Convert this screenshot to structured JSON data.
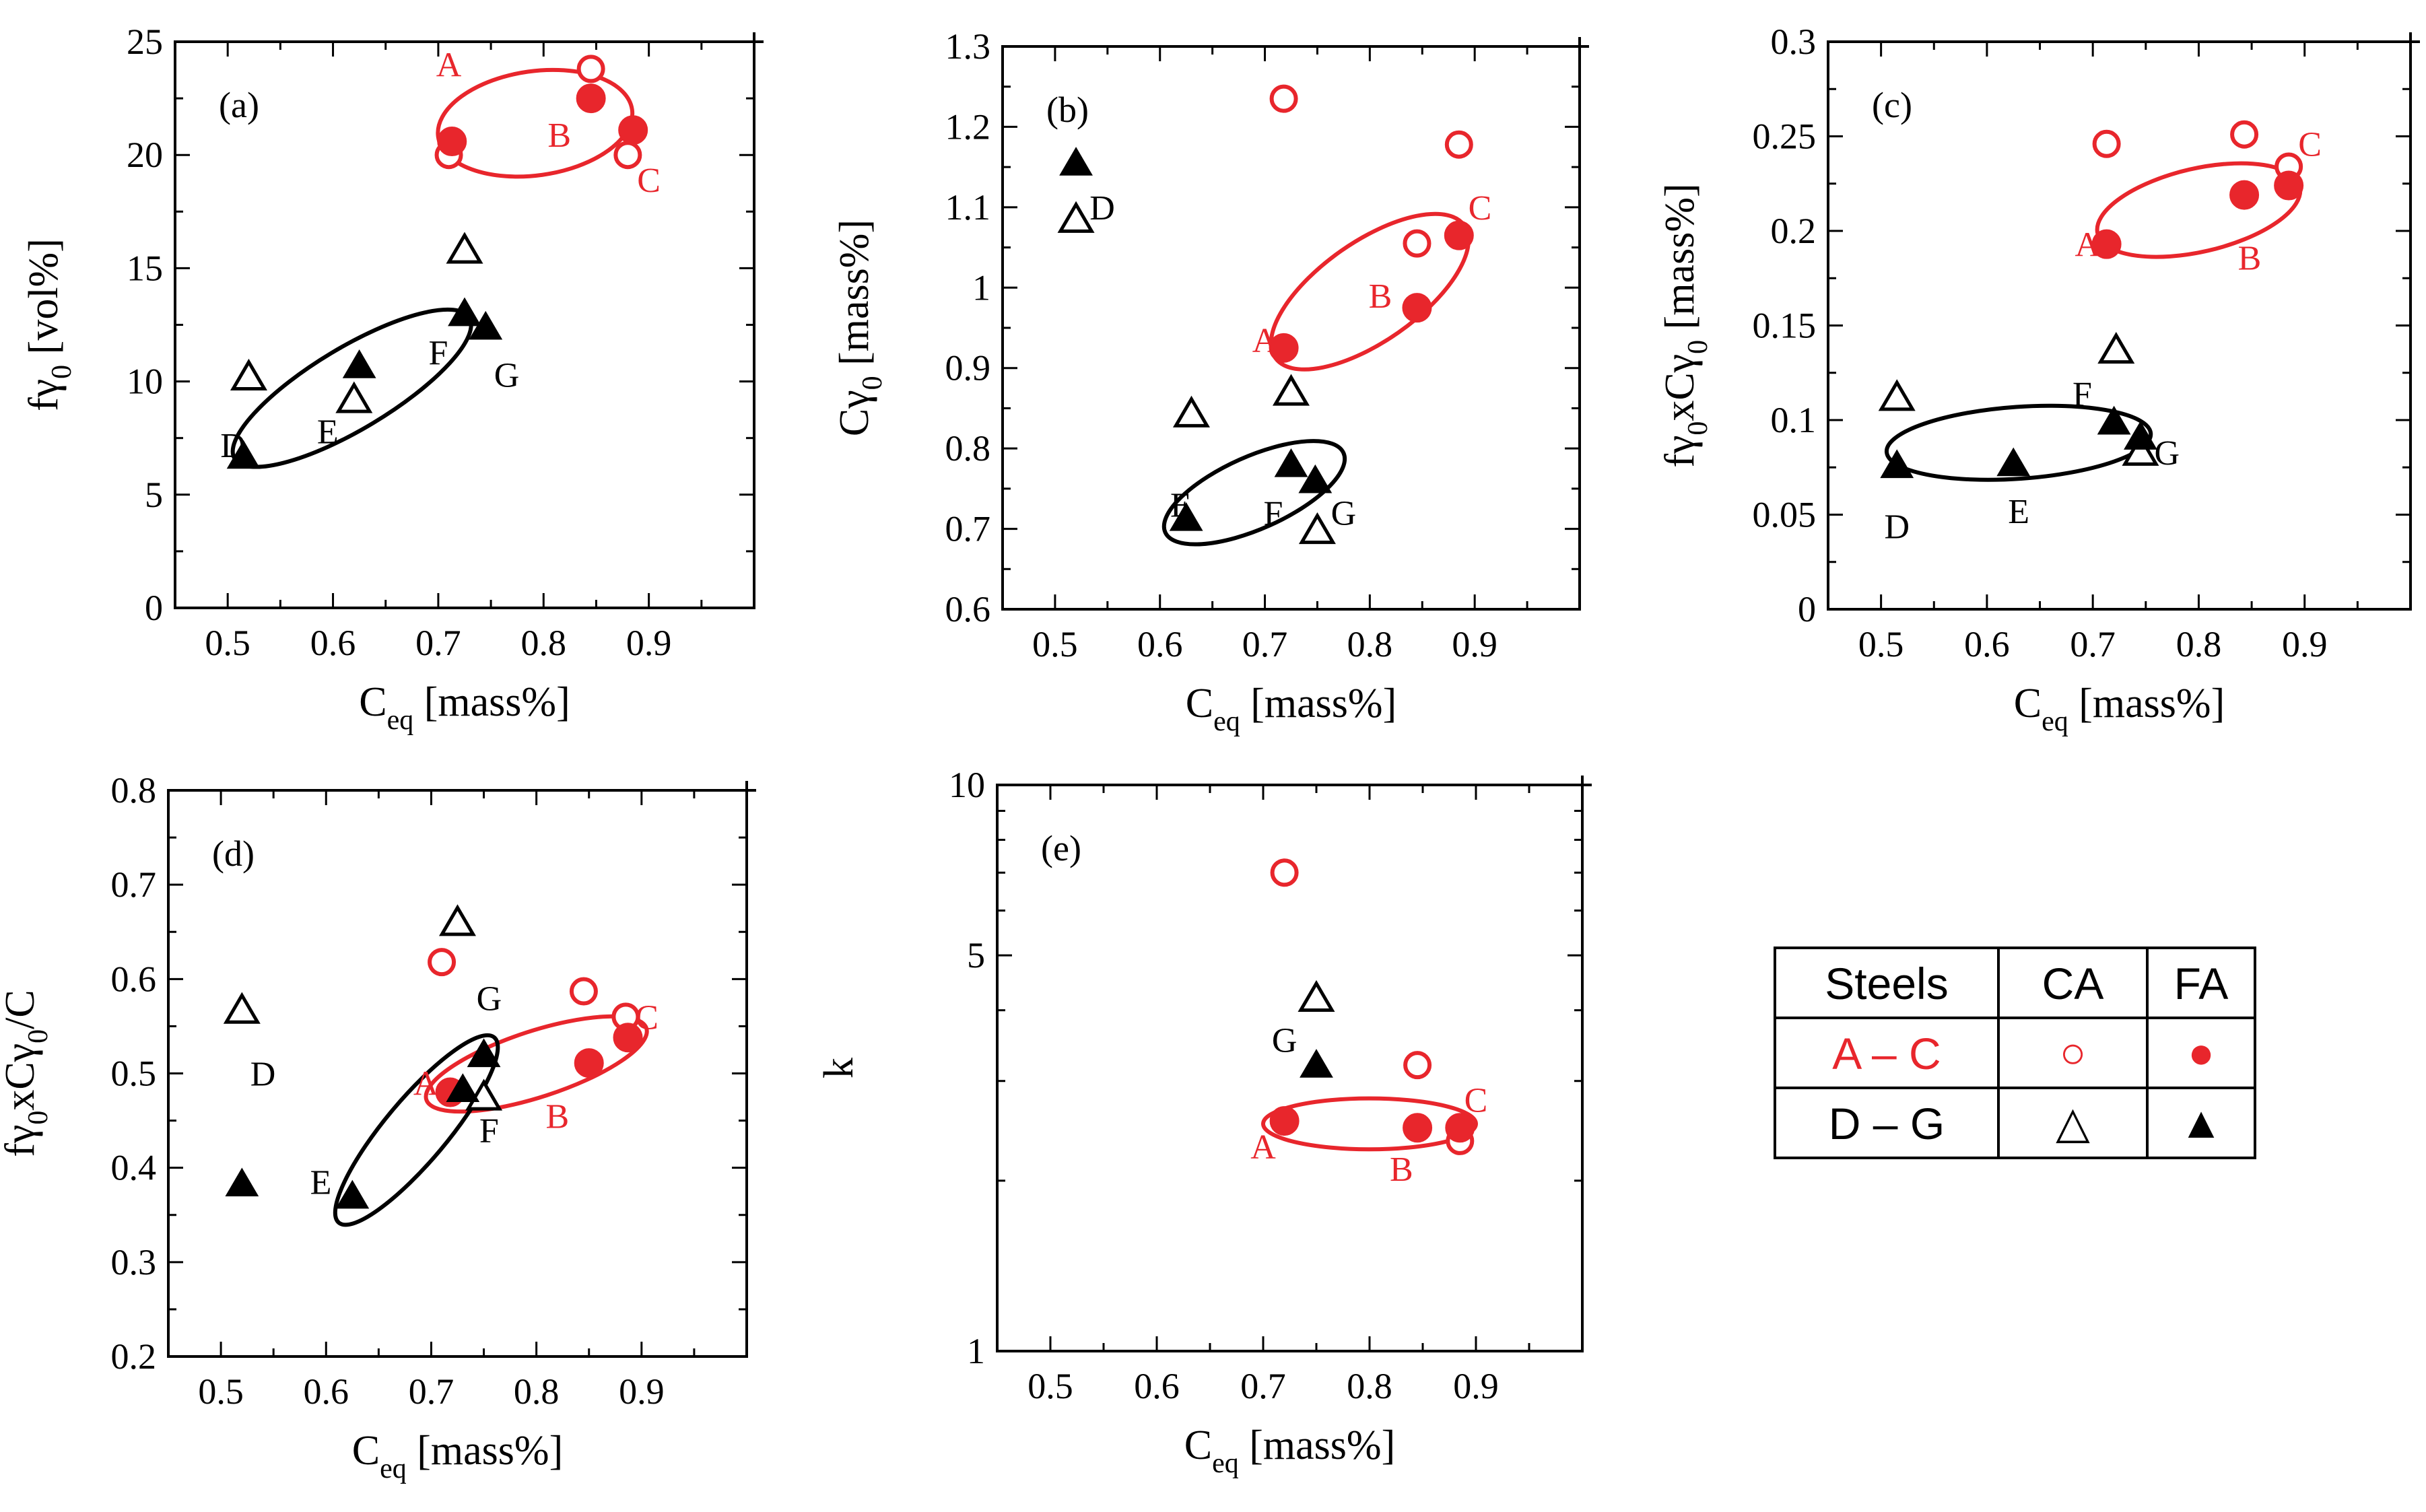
{
  "colors": {
    "red": "#e8262c",
    "black": "#000000"
  },
  "legend": {
    "headers": [
      "Steels",
      "CA",
      "FA"
    ],
    "rows": [
      {
        "steels": "A – C",
        "ca_symbol": "○",
        "fa_symbol": "●",
        "color": "#e8262c"
      },
      {
        "steels": "D – G",
        "ca_symbol": "△",
        "fa_symbol": "▲",
        "color": "#000000"
      }
    ]
  },
  "chart_data": [
    {
      "id": "a",
      "panel_label": "(a)",
      "type": "scatter",
      "ylabel_main": "fγ",
      "ylabel_sub": "0",
      "ylabel_rest": " [vol%]",
      "xlabel_main": "C",
      "xlabel_sub": "eq",
      "xlabel_rest": " [mass%]",
      "xlim": [
        0.45,
        1.0
      ],
      "ylim": [
        0,
        25
      ],
      "xticks": [
        0.5,
        0.6,
        0.7,
        0.8,
        0.9
      ],
      "xtick_labels": [
        "0.5",
        "0.6",
        "0.7",
        "0.8",
        "0.9"
      ],
      "yticks": [
        0,
        5,
        10,
        15,
        20,
        25
      ],
      "ytick_labels": [
        "0",
        "5",
        "10",
        "15",
        "20",
        "25"
      ],
      "yscale": "linear",
      "series": [
        {
          "name": "A–C CA",
          "marker": "circle-open",
          "color": "red",
          "points": [
            {
              "x": 0.71,
              "y": 20.0
            },
            {
              "x": 0.845,
              "y": 23.8
            },
            {
              "x": 0.88,
              "y": 20.0
            }
          ]
        },
        {
          "name": "A–C FA",
          "marker": "circle-filled",
          "color": "red",
          "points": [
            {
              "x": 0.713,
              "y": 20.6
            },
            {
              "x": 0.845,
              "y": 22.5
            },
            {
              "x": 0.885,
              "y": 21.1
            }
          ]
        },
        {
          "name": "D–G CA",
          "marker": "triangle-open",
          "color": "black",
          "points": [
            {
              "x": 0.52,
              "y": 10.2
            },
            {
              "x": 0.62,
              "y": 9.2
            },
            {
              "x": 0.725,
              "y": 15.8
            }
          ]
        },
        {
          "name": "D–G FA",
          "marker": "triangle-filled",
          "color": "black",
          "points": [
            {
              "x": 0.515,
              "y": 6.7
            },
            {
              "x": 0.625,
              "y": 10.7
            },
            {
              "x": 0.725,
              "y": 13.0
            },
            {
              "x": 0.745,
              "y": 12.4
            }
          ]
        }
      ],
      "annotations": [
        {
          "text": "A",
          "x": 0.71,
          "y": 24.0,
          "color": "red"
        },
        {
          "text": "B",
          "x": 0.815,
          "y": 20.9,
          "color": "red"
        },
        {
          "text": "C",
          "x": 0.9,
          "y": 18.9,
          "color": "red"
        },
        {
          "text": "D",
          "x": 0.505,
          "y": 7.2,
          "color": "black"
        },
        {
          "text": "E",
          "x": 0.595,
          "y": 7.8,
          "color": "black"
        },
        {
          "text": "F",
          "x": 0.7,
          "y": 11.3,
          "color": "black"
        },
        {
          "text": "G",
          "x": 0.765,
          "y": 10.3,
          "color": "black"
        }
      ],
      "ellipses": [
        {
          "color": "red",
          "cx": 0.792,
          "cy": 21.4,
          "rx_data": 0.093,
          "ry_data": 2.3,
          "angle_deg": -8
        },
        {
          "color": "black",
          "cx": 0.618,
          "cy": 9.7,
          "rx_data": 0.13,
          "ry_data": 1.8,
          "angle_deg": -31
        }
      ]
    },
    {
      "id": "b",
      "panel_label": "(b)",
      "type": "scatter",
      "ylabel_main": "Cγ",
      "ylabel_sub": "0",
      "ylabel_rest": " [mass%]",
      "xlabel_main": "C",
      "xlabel_sub": "eq",
      "xlabel_rest": " [mass%]",
      "xlim": [
        0.45,
        1.0
      ],
      "ylim": [
        0.6,
        1.3
      ],
      "xticks": [
        0.5,
        0.6,
        0.7,
        0.8,
        0.9
      ],
      "xtick_labels": [
        "0.5",
        "0.6",
        "0.7",
        "0.8",
        "0.9"
      ],
      "yticks": [
        0.6,
        0.7,
        0.8,
        0.9,
        1.0,
        1.1,
        1.2,
        1.3
      ],
      "ytick_labels": [
        "0.6",
        "0.7",
        "0.8",
        "0.9",
        "1",
        "1.1",
        "1.2",
        "1.3"
      ],
      "yscale": "linear",
      "series": [
        {
          "name": "A–C CA",
          "marker": "circle-open",
          "color": "red",
          "points": [
            {
              "x": 0.718,
              "y": 1.235
            },
            {
              "x": 0.845,
              "y": 1.055
            },
            {
              "x": 0.885,
              "y": 1.178
            }
          ]
        },
        {
          "name": "A–C FA",
          "marker": "circle-filled",
          "color": "red",
          "points": [
            {
              "x": 0.718,
              "y": 0.925
            },
            {
              "x": 0.845,
              "y": 0.975
            },
            {
              "x": 0.885,
              "y": 1.065
            }
          ]
        },
        {
          "name": "D–G CA",
          "marker": "triangle-open",
          "color": "black",
          "points": [
            {
              "x": 0.52,
              "y": 1.085
            },
            {
              "x": 0.63,
              "y": 0.843
            },
            {
              "x": 0.725,
              "y": 0.87
            },
            {
              "x": 0.75,
              "y": 0.698
            }
          ]
        },
        {
          "name": "D–G FA",
          "marker": "triangle-filled",
          "color": "black",
          "points": [
            {
              "x": 0.52,
              "y": 1.155
            },
            {
              "x": 0.625,
              "y": 0.713
            },
            {
              "x": 0.725,
              "y": 0.78
            },
            {
              "x": 0.748,
              "y": 0.76
            }
          ]
        }
      ],
      "annotations": [
        {
          "text": "A",
          "x": 0.7,
          "y": 0.935,
          "color": "red"
        },
        {
          "text": "B",
          "x": 0.81,
          "y": 0.99,
          "color": "red"
        },
        {
          "text": "C",
          "x": 0.905,
          "y": 1.1,
          "color": "red"
        },
        {
          "text": "D",
          "x": 0.545,
          "y": 1.1,
          "color": "black"
        },
        {
          "text": "E",
          "x": 0.62,
          "y": 0.73,
          "color": "black"
        },
        {
          "text": "F",
          "x": 0.708,
          "y": 0.72,
          "color": "black"
        },
        {
          "text": "G",
          "x": 0.775,
          "y": 0.72,
          "color": "black"
        }
      ],
      "ellipses": [
        {
          "color": "red",
          "cx": 0.8,
          "cy": 0.995,
          "rx_data": 0.11,
          "ry_data": 0.062,
          "angle_deg": -35
        },
        {
          "color": "black",
          "cx": 0.69,
          "cy": 0.745,
          "rx_data": 0.093,
          "ry_data": 0.045,
          "angle_deg": -24
        }
      ]
    },
    {
      "id": "c",
      "panel_label": "(c)",
      "type": "scatter",
      "ylabel_main": "fγ",
      "ylabel_sub": "0",
      "ylabel_mid": "xCγ",
      "ylabel_sub2": "0",
      "ylabel_rest": " [mass%]",
      "xlabel_main": "C",
      "xlabel_sub": "eq",
      "xlabel_rest": " [mass%]",
      "xlim": [
        0.45,
        1.0
      ],
      "ylim": [
        0,
        0.3
      ],
      "xticks": [
        0.5,
        0.6,
        0.7,
        0.8,
        0.9
      ],
      "xtick_labels": [
        "0.5",
        "0.6",
        "0.7",
        "0.8",
        "0.9"
      ],
      "yticks": [
        0,
        0.05,
        0.1,
        0.15,
        0.2,
        0.25,
        0.3
      ],
      "ytick_labels": [
        "0",
        "0.05",
        "0.1",
        "0.15",
        "0.2",
        "0.25",
        "0.3"
      ],
      "yscale": "linear",
      "series": [
        {
          "name": "A–C CA",
          "marker": "circle-open",
          "color": "red",
          "points": [
            {
              "x": 0.713,
              "y": 0.246
            },
            {
              "x": 0.843,
              "y": 0.251
            },
            {
              "x": 0.885,
              "y": 0.234
            }
          ]
        },
        {
          "name": "A–C FA",
          "marker": "circle-filled",
          "color": "red",
          "points": [
            {
              "x": 0.713,
              "y": 0.193
            },
            {
              "x": 0.843,
              "y": 0.219
            },
            {
              "x": 0.885,
              "y": 0.224
            }
          ]
        },
        {
          "name": "D–G CA",
          "marker": "triangle-open",
          "color": "black",
          "points": [
            {
              "x": 0.515,
              "y": 0.112
            },
            {
              "x": 0.722,
              "y": 0.137
            },
            {
              "x": 0.745,
              "y": 0.083
            }
          ]
        },
        {
          "name": "D–G FA",
          "marker": "triangle-filled",
          "color": "black",
          "points": [
            {
              "x": 0.515,
              "y": 0.076
            },
            {
              "x": 0.625,
              "y": 0.077
            },
            {
              "x": 0.72,
              "y": 0.099
            },
            {
              "x": 0.745,
              "y": 0.091
            }
          ]
        }
      ],
      "annotations": [
        {
          "text": "A",
          "x": 0.695,
          "y": 0.193,
          "color": "red"
        },
        {
          "text": "B",
          "x": 0.848,
          "y": 0.186,
          "color": "red"
        },
        {
          "text": "C",
          "x": 0.905,
          "y": 0.246,
          "color": "red"
        },
        {
          "text": "D",
          "x": 0.515,
          "y": 0.044,
          "color": "black"
        },
        {
          "text": "E",
          "x": 0.63,
          "y": 0.052,
          "color": "black"
        },
        {
          "text": "F",
          "x": 0.69,
          "y": 0.114,
          "color": "black"
        },
        {
          "text": "G",
          "x": 0.77,
          "y": 0.083,
          "color": "black"
        }
      ],
      "ellipses": [
        {
          "color": "red",
          "cx": 0.8,
          "cy": 0.211,
          "rx_data": 0.098,
          "ry_data": 0.022,
          "angle_deg": -13
        },
        {
          "color": "black",
          "cx": 0.63,
          "cy": 0.088,
          "rx_data": 0.125,
          "ry_data": 0.019,
          "angle_deg": -4
        }
      ]
    },
    {
      "id": "d",
      "panel_label": "(d)",
      "type": "scatter",
      "ylabel_main": "fγ",
      "ylabel_sub": "0",
      "ylabel_mid": "xCγ",
      "ylabel_sub2": "0",
      "ylabel_rest": "/C",
      "xlabel_main": "C",
      "xlabel_sub": "eq",
      "xlabel_rest": " [mass%]",
      "xlim": [
        0.45,
        1.0
      ],
      "ylim": [
        0.2,
        0.8
      ],
      "xticks": [
        0.5,
        0.6,
        0.7,
        0.8,
        0.9
      ],
      "xtick_labels": [
        "0.5",
        "0.6",
        "0.7",
        "0.8",
        "0.9"
      ],
      "yticks": [
        0.2,
        0.3,
        0.4,
        0.5,
        0.6,
        0.7,
        0.8
      ],
      "ytick_labels": [
        "0.2",
        "0.3",
        "0.4",
        "0.5",
        "0.6",
        "0.7",
        "0.8"
      ],
      "yscale": "linear",
      "series": [
        {
          "name": "A–C CA",
          "marker": "circle-open",
          "color": "red",
          "points": [
            {
              "x": 0.71,
              "y": 0.618
            },
            {
              "x": 0.845,
              "y": 0.587
            },
            {
              "x": 0.885,
              "y": 0.56
            }
          ]
        },
        {
          "name": "A–C FA",
          "marker": "circle-filled",
          "color": "red",
          "points": [
            {
              "x": 0.718,
              "y": 0.48
            },
            {
              "x": 0.85,
              "y": 0.511
            },
            {
              "x": 0.887,
              "y": 0.538
            }
          ]
        },
        {
          "name": "D–G CA",
          "marker": "triangle-open",
          "color": "black",
          "points": [
            {
              "x": 0.52,
              "y": 0.567
            },
            {
              "x": 0.725,
              "y": 0.66
            },
            {
              "x": 0.75,
              "y": 0.475
            }
          ]
        },
        {
          "name": "D–G FA",
          "marker": "triangle-filled",
          "color": "black",
          "points": [
            {
              "x": 0.52,
              "y": 0.383
            },
            {
              "x": 0.625,
              "y": 0.37
            },
            {
              "x": 0.73,
              "y": 0.483
            },
            {
              "x": 0.75,
              "y": 0.52
            }
          ]
        }
      ],
      "annotations": [
        {
          "text": "A",
          "x": 0.695,
          "y": 0.49,
          "color": "red"
        },
        {
          "text": "B",
          "x": 0.82,
          "y": 0.455,
          "color": "red"
        },
        {
          "text": "C",
          "x": 0.905,
          "y": 0.56,
          "color": "red"
        },
        {
          "text": "D",
          "x": 0.54,
          "y": 0.5,
          "color": "black"
        },
        {
          "text": "E",
          "x": 0.595,
          "y": 0.385,
          "color": "black"
        },
        {
          "text": "F",
          "x": 0.755,
          "y": 0.44,
          "color": "black"
        },
        {
          "text": "G",
          "x": 0.755,
          "y": 0.58,
          "color": "black"
        }
      ],
      "ellipses": [
        {
          "color": "red",
          "cx": 0.8,
          "cy": 0.51,
          "rx_data": 0.11,
          "ry_data": 0.035,
          "angle_deg": -18
        },
        {
          "color": "black",
          "cx": 0.686,
          "cy": 0.44,
          "rx_data": 0.115,
          "ry_data": 0.033,
          "angle_deg": -50
        }
      ]
    },
    {
      "id": "e",
      "panel_label": "(e)",
      "type": "scatter",
      "ylabel_main": "k",
      "xlabel_main": "C",
      "xlabel_sub": "eq",
      "xlabel_rest": " [mass%]",
      "xlim": [
        0.45,
        1.0
      ],
      "ylim": [
        1,
        10
      ],
      "xticks": [
        0.5,
        0.6,
        0.7,
        0.8,
        0.9
      ],
      "xtick_labels": [
        "0.5",
        "0.6",
        "0.7",
        "0.8",
        "0.9"
      ],
      "yticks": [
        1,
        5,
        10
      ],
      "ytick_labels": [
        "1",
        "5",
        "10"
      ],
      "yscale": "log",
      "series": [
        {
          "name": "A–C CA",
          "marker": "circle-open",
          "color": "red",
          "points": [
            {
              "x": 0.72,
              "y": 7.0
            },
            {
              "x": 0.845,
              "y": 3.2
            },
            {
              "x": 0.885,
              "y": 2.35
            }
          ]
        },
        {
          "name": "A–C FA",
          "marker": "circle-filled",
          "color": "red",
          "points": [
            {
              "x": 0.72,
              "y": 2.55
            },
            {
              "x": 0.845,
              "y": 2.48
            },
            {
              "x": 0.885,
              "y": 2.48
            }
          ]
        },
        {
          "name": "D–G CA",
          "marker": "triangle-open",
          "color": "black",
          "points": [
            {
              "x": 0.75,
              "y": 4.2
            }
          ]
        },
        {
          "name": "D–G FA",
          "marker": "triangle-filled",
          "color": "black",
          "points": [
            {
              "x": 0.75,
              "y": 3.2
            }
          ]
        }
      ],
      "annotations": [
        {
          "text": "A",
          "x": 0.7,
          "y": 2.3,
          "color": "red"
        },
        {
          "text": "B",
          "x": 0.83,
          "y": 2.1,
          "color": "red"
        },
        {
          "text": "C",
          "x": 0.9,
          "y": 2.78,
          "color": "red"
        },
        {
          "text": "G",
          "x": 0.72,
          "y": 3.55,
          "color": "black"
        }
      ],
      "ellipses": [
        {
          "color": "red",
          "cx": 0.8,
          "cy": 2.52,
          "rx_data": 0.1,
          "ry_log": 0.045,
          "angle_deg": 0
        }
      ]
    }
  ]
}
